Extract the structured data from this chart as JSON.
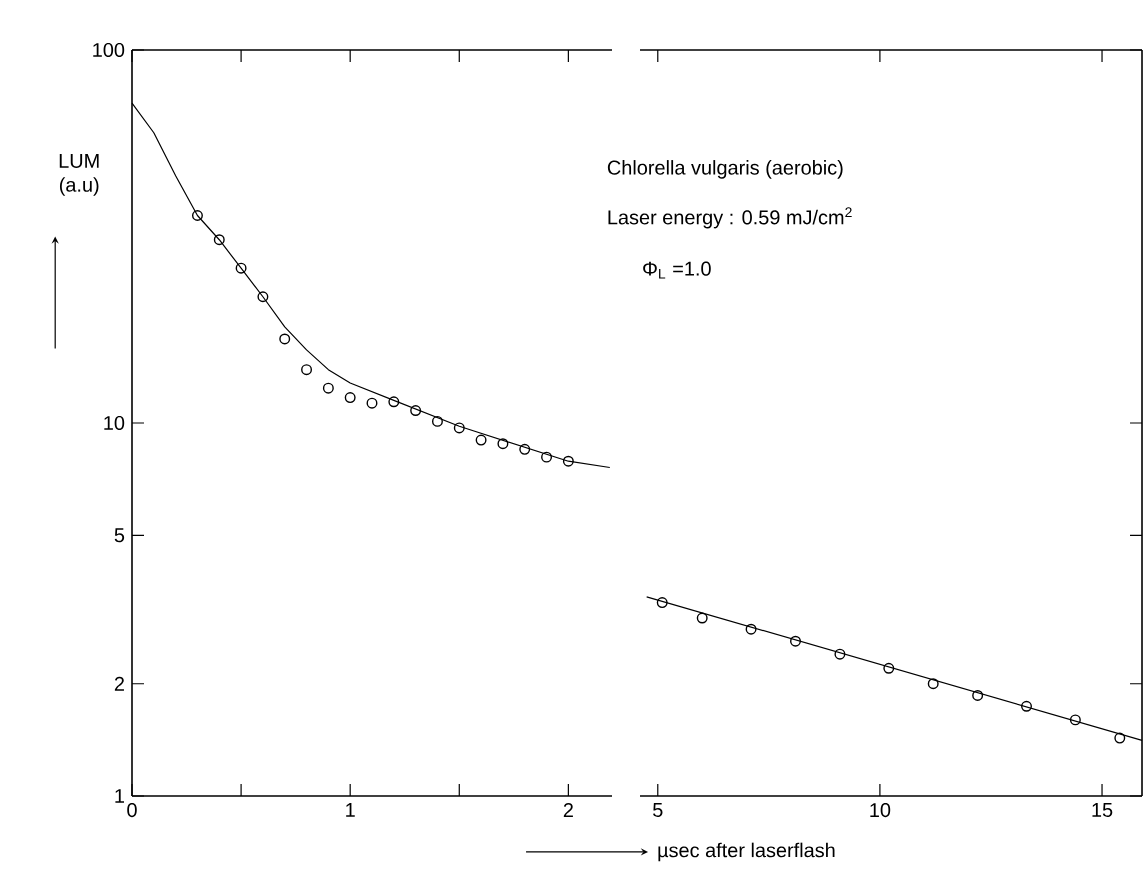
{
  "chart_data": [
    {
      "type": "scatter",
      "log": "y",
      "ylabel": "LUM (a.u)",
      "xlim": [
        0,
        2.2
      ],
      "ylim": [
        1,
        100
      ],
      "xticks": [
        0,
        {
          "value": 0.5,
          "label": null
        },
        1,
        {
          "value": 1.5,
          "label": null
        },
        2
      ],
      "yticks": [
        1,
        2,
        5,
        10,
        100
      ],
      "series": [
        {
          "marker": "circle",
          "color": "#000000",
          "x": [
            0.3,
            0.4,
            0.5,
            0.6,
            0.7,
            0.8,
            0.9,
            1.0,
            1.1,
            1.2,
            1.3,
            1.4,
            1.5,
            1.6,
            1.7,
            1.8,
            1.9,
            2.0
          ],
          "values": [
            36,
            31,
            26,
            21.8,
            16.8,
            13.9,
            12.4,
            11.7,
            11.3,
            11.4,
            10.8,
            10.1,
            9.7,
            9.0,
            8.8,
            8.5,
            8.1,
            7.9
          ]
        },
        {
          "type": "line",
          "marker": "none",
          "color": "#000000",
          "x": [
            0,
            0.1,
            0.2,
            0.3,
            0.4,
            0.5,
            0.6,
            0.7,
            0.8,
            0.9,
            1.0,
            1.2,
            1.5,
            2.0,
            2.19
          ],
          "values": [
            72,
            60,
            46,
            36,
            31,
            26,
            21.8,
            18.1,
            15.7,
            13.9,
            12.8,
            11.5,
            9.8,
            7.9,
            7.6
          ]
        }
      ]
    },
    {
      "type": "scatter",
      "log": "y",
      "tick_labels": "x",
      "xlabel": "µsec after laserflash",
      "annotations": [
        "Chlorella vulgaris (aerobic)",
        "Laser energy : 0.59 mJ/cm$^{2}$",
        "Φ$_{L}$ =1.0"
      ],
      "xlim": [
        4.6,
        15.9
      ],
      "ylim": [
        1,
        100
      ],
      "xticks": [
        5,
        10,
        15
      ],
      "yticks": [
        1,
        2,
        5,
        10,
        100
      ],
      "series": [
        {
          "marker": "circle",
          "color": "#000000",
          "x": [
            5.1,
            6.0,
            7.1,
            8.1,
            9.1,
            10.2,
            11.2,
            12.2,
            13.3,
            14.4,
            15.4
          ],
          "values": [
            3.3,
            3.0,
            2.8,
            2.6,
            2.4,
            2.2,
            2.0,
            1.86,
            1.74,
            1.6,
            1.43
          ]
        },
        {
          "type": "line",
          "marker": "none",
          "color": "#000000",
          "x": [
            4.75,
            15.9
          ],
          "values": [
            3.42,
            1.41
          ]
        }
      ]
    }
  ]
}
